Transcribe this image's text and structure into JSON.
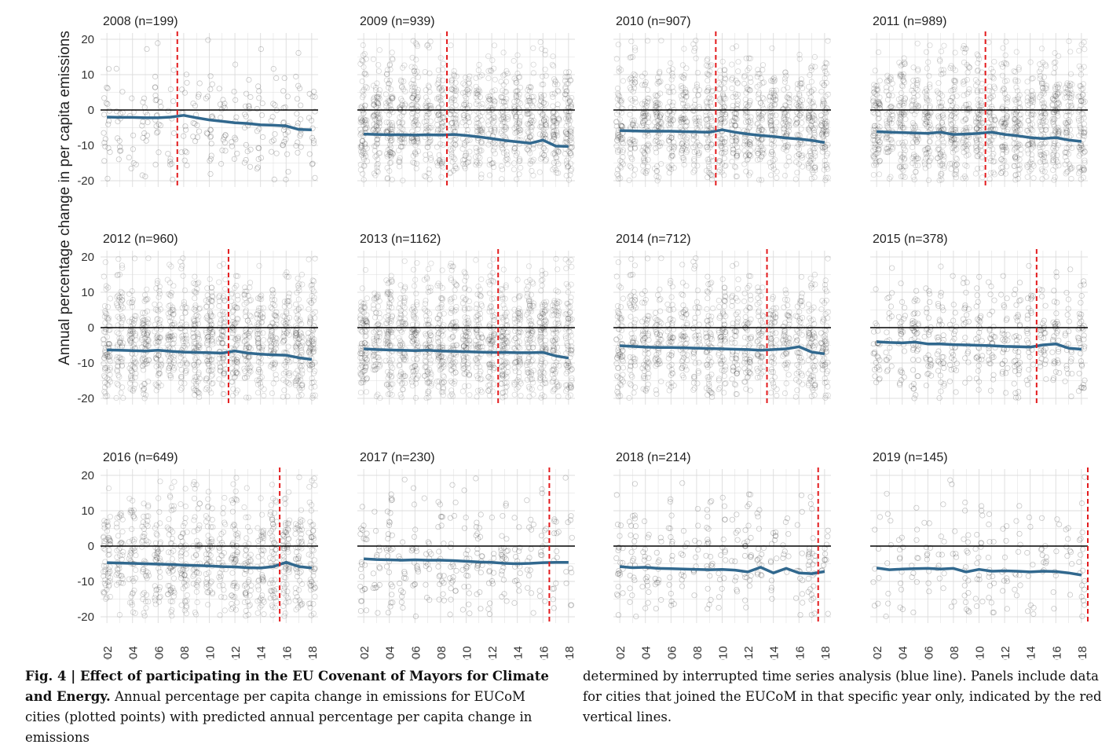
{
  "figure": {
    "ylabel": "Annual percentage change in per capita emissions",
    "caption_label": "Fig. 4 | ",
    "caption_title": "Effect of participating in the EU Covenant of Mayors for Climate and Energy.",
    "caption_text_left": " Annual percentage per capita change in emissions for EUCoM cities (plotted points) with predicted annual percentage per capita change in emissions",
    "caption_text_right": "determined by interrupted time series analysis (blue line). Panels include data for cities that joined the EUCoM in that specific year only, indicated by the red vertical lines."
  },
  "chart_data": [
    {
      "type": "scatter",
      "title": "2008 (n=199)",
      "join_year": 2008,
      "n": 199,
      "ylim": [
        -20,
        20
      ],
      "yticks": [
        20,
        10,
        0,
        -10,
        -20
      ],
      "xlim": [
        2001.5,
        2018.5
      ],
      "xticks": [
        2002,
        2004,
        2006,
        2008,
        2010,
        2012,
        2014,
        2016,
        2018
      ],
      "trend": {
        "x": [
          2002,
          2003,
          2004,
          2005,
          2006,
          2007,
          2008,
          2009,
          2010,
          2011,
          2012,
          2013,
          2014,
          2015,
          2016,
          2017,
          2018
        ],
        "y": [
          -2.0,
          -2.1,
          -2.1,
          -2.2,
          -2.2,
          -2.0,
          -1.5,
          -2.2,
          -2.8,
          -3.2,
          -3.6,
          -3.8,
          -4.2,
          -4.3,
          -4.5,
          -5.5,
          -5.6
        ]
      }
    },
    {
      "type": "scatter",
      "title": "2009 (n=939)",
      "join_year": 2009,
      "n": 939,
      "ylim": [
        -20,
        20
      ],
      "yticks": [
        20,
        10,
        0,
        -10,
        -20
      ],
      "xlim": [
        2001.5,
        2018.5
      ],
      "xticks": [
        2002,
        2004,
        2006,
        2008,
        2010,
        2012,
        2014,
        2016,
        2018
      ],
      "trend": {
        "x": [
          2002,
          2003,
          2004,
          2005,
          2006,
          2007,
          2008,
          2009,
          2010,
          2011,
          2012,
          2013,
          2014,
          2015,
          2016,
          2017,
          2018
        ],
        "y": [
          -6.8,
          -6.9,
          -7.0,
          -7.0,
          -7.1,
          -7.0,
          -7.1,
          -6.9,
          -7.2,
          -7.6,
          -8.1,
          -8.6,
          -9.0,
          -9.4,
          -8.5,
          -10.2,
          -10.3
        ]
      }
    },
    {
      "type": "scatter",
      "title": "2010 (n=907)",
      "join_year": 2010,
      "n": 907,
      "ylim": [
        -20,
        20
      ],
      "yticks": [
        20,
        10,
        0,
        -10,
        -20
      ],
      "xlim": [
        2001.5,
        2018.5
      ],
      "xticks": [
        2002,
        2004,
        2006,
        2008,
        2010,
        2012,
        2014,
        2016,
        2018
      ],
      "trend": {
        "x": [
          2002,
          2003,
          2004,
          2005,
          2006,
          2007,
          2008,
          2009,
          2010,
          2011,
          2012,
          2013,
          2014,
          2015,
          2016,
          2017,
          2018
        ],
        "y": [
          -5.8,
          -5.9,
          -6.0,
          -6.0,
          -6.0,
          -6.1,
          -6.2,
          -6.3,
          -5.6,
          -6.3,
          -6.8,
          -7.2,
          -7.5,
          -7.9,
          -8.2,
          -8.6,
          -9.2
        ]
      }
    },
    {
      "type": "scatter",
      "title": "2011 (n=989)",
      "join_year": 2011,
      "n": 989,
      "ylim": [
        -20,
        20
      ],
      "yticks": [
        20,
        10,
        0,
        -10,
        -20
      ],
      "xlim": [
        2001.5,
        2018.5
      ],
      "xticks": [
        2002,
        2004,
        2006,
        2008,
        2010,
        2012,
        2014,
        2016,
        2018
      ],
      "trend": {
        "x": [
          2002,
          2003,
          2004,
          2005,
          2006,
          2007,
          2008,
          2009,
          2010,
          2011,
          2012,
          2013,
          2014,
          2015,
          2016,
          2017,
          2018
        ],
        "y": [
          -6.1,
          -6.3,
          -6.4,
          -6.5,
          -6.6,
          -6.3,
          -6.9,
          -6.8,
          -6.6,
          -6.3,
          -6.9,
          -7.3,
          -7.8,
          -8.1,
          -7.8,
          -8.5,
          -8.9
        ]
      }
    },
    {
      "type": "scatter",
      "title": "2012 (n=960)",
      "join_year": 2012,
      "n": 960,
      "ylim": [
        -20,
        20
      ],
      "yticks": [
        20,
        10,
        0,
        -10,
        -20
      ],
      "xlim": [
        2001.5,
        2018.5
      ],
      "xticks": [
        2002,
        2004,
        2006,
        2008,
        2010,
        2012,
        2014,
        2016,
        2018
      ],
      "trend": {
        "x": [
          2002,
          2003,
          2004,
          2005,
          2006,
          2007,
          2008,
          2009,
          2010,
          2011,
          2012,
          2013,
          2014,
          2015,
          2016,
          2017,
          2018
        ],
        "y": [
          -6.3,
          -6.4,
          -6.5,
          -6.6,
          -6.4,
          -6.7,
          -6.9,
          -7.0,
          -7.1,
          -7.2,
          -6.6,
          -7.2,
          -7.5,
          -7.7,
          -7.8,
          -8.5,
          -9.0
        ]
      }
    },
    {
      "type": "scatter",
      "title": "2013 (n=1162)",
      "join_year": 2013,
      "n": 1162,
      "ylim": [
        -20,
        20
      ],
      "yticks": [
        20,
        10,
        0,
        -10,
        -20
      ],
      "xlim": [
        2001.5,
        2018.5
      ],
      "xticks": [
        2002,
        2004,
        2006,
        2008,
        2010,
        2012,
        2014,
        2016,
        2018
      ],
      "trend": {
        "x": [
          2002,
          2003,
          2004,
          2005,
          2006,
          2007,
          2008,
          2009,
          2010,
          2011,
          2012,
          2013,
          2014,
          2015,
          2016,
          2017,
          2018
        ],
        "y": [
          -6.0,
          -6.2,
          -6.3,
          -6.4,
          -6.5,
          -6.4,
          -6.6,
          -6.7,
          -6.8,
          -6.9,
          -7.0,
          -7.0,
          -7.1,
          -7.1,
          -7.0,
          -8.0,
          -8.6
        ]
      }
    },
    {
      "type": "scatter",
      "title": "2014 (n=712)",
      "join_year": 2014,
      "n": 712,
      "ylim": [
        -20,
        20
      ],
      "yticks": [
        20,
        10,
        0,
        -10,
        -20
      ],
      "xlim": [
        2001.5,
        2018.5
      ],
      "xticks": [
        2002,
        2004,
        2006,
        2008,
        2010,
        2012,
        2014,
        2016,
        2018
      ],
      "trend": {
        "x": [
          2002,
          2003,
          2004,
          2005,
          2006,
          2007,
          2008,
          2009,
          2010,
          2011,
          2012,
          2013,
          2014,
          2015,
          2016,
          2017,
          2018
        ],
        "y": [
          -5.1,
          -5.3,
          -5.5,
          -5.6,
          -5.6,
          -5.7,
          -5.8,
          -5.9,
          -6.0,
          -6.1,
          -6.2,
          -6.4,
          -6.2,
          -6.0,
          -5.4,
          -6.9,
          -7.4
        ]
      }
    },
    {
      "type": "scatter",
      "title": "2015 (n=378)",
      "join_year": 2015,
      "n": 378,
      "ylim": [
        -20,
        20
      ],
      "yticks": [
        20,
        10,
        0,
        -10,
        -20
      ],
      "xlim": [
        2001.5,
        2018.5
      ],
      "xticks": [
        2002,
        2004,
        2006,
        2008,
        2010,
        2012,
        2014,
        2016,
        2018
      ],
      "trend": {
        "x": [
          2002,
          2003,
          2004,
          2005,
          2006,
          2007,
          2008,
          2009,
          2010,
          2011,
          2012,
          2013,
          2014,
          2015,
          2016,
          2017,
          2018
        ],
        "y": [
          -4.0,
          -4.2,
          -4.3,
          -4.1,
          -4.6,
          -4.6,
          -4.8,
          -4.9,
          -5.0,
          -5.1,
          -5.3,
          -5.4,
          -5.5,
          -4.9,
          -4.6,
          -5.8,
          -6.1
        ]
      }
    },
    {
      "type": "scatter",
      "title": "2016 (n=649)",
      "join_year": 2016,
      "n": 649,
      "ylim": [
        -20,
        20
      ],
      "yticks": [
        20,
        10,
        0,
        -10,
        -20
      ],
      "xlim": [
        2001.5,
        2018.5
      ],
      "xticks": [
        2002,
        2004,
        2006,
        2008,
        2010,
        2012,
        2014,
        2016,
        2018
      ],
      "trend": {
        "x": [
          2002,
          2003,
          2004,
          2005,
          2006,
          2007,
          2008,
          2009,
          2010,
          2011,
          2012,
          2013,
          2014,
          2015,
          2016,
          2017,
          2018
        ],
        "y": [
          -4.7,
          -4.8,
          -4.9,
          -5.0,
          -5.1,
          -5.2,
          -5.4,
          -5.5,
          -5.6,
          -5.8,
          -5.9,
          -6.1,
          -6.2,
          -5.8,
          -4.6,
          -5.8,
          -6.2
        ]
      }
    },
    {
      "type": "scatter",
      "title": "2017 (n=230)",
      "join_year": 2017,
      "n": 230,
      "ylim": [
        -20,
        20
      ],
      "yticks": [
        20,
        10,
        0,
        -10,
        -20
      ],
      "xlim": [
        2001.5,
        2018.5
      ],
      "xticks": [
        2002,
        2004,
        2006,
        2008,
        2010,
        2012,
        2014,
        2016,
        2018
      ],
      "trend": {
        "x": [
          2002,
          2003,
          2004,
          2005,
          2006,
          2007,
          2008,
          2009,
          2010,
          2011,
          2012,
          2013,
          2014,
          2015,
          2016,
          2017,
          2018
        ],
        "y": [
          -3.6,
          -3.8,
          -3.9,
          -4.0,
          -3.9,
          -4.0,
          -4.0,
          -4.1,
          -4.3,
          -4.5,
          -4.6,
          -4.9,
          -5.0,
          -4.9,
          -4.7,
          -4.6,
          -4.6
        ]
      }
    },
    {
      "type": "scatter",
      "title": "2018 (n=214)",
      "join_year": 2018,
      "n": 214,
      "ylim": [
        -20,
        20
      ],
      "yticks": [
        20,
        10,
        0,
        -10,
        -20
      ],
      "xlim": [
        2001.5,
        2018.5
      ],
      "xticks": [
        2002,
        2004,
        2006,
        2008,
        2010,
        2012,
        2014,
        2016,
        2018
      ],
      "trend": {
        "x": [
          2002,
          2003,
          2004,
          2005,
          2006,
          2007,
          2008,
          2009,
          2010,
          2011,
          2012,
          2013,
          2014,
          2015,
          2016,
          2017,
          2018
        ],
        "y": [
          -5.8,
          -6.1,
          -6.0,
          -6.3,
          -6.4,
          -6.5,
          -6.6,
          -6.7,
          -6.6,
          -6.8,
          -7.3,
          -6.0,
          -7.6,
          -6.3,
          -7.6,
          -7.8,
          -7.2
        ]
      }
    },
    {
      "type": "scatter",
      "title": "2019 (n=145)",
      "join_year": 2019,
      "n": 145,
      "ylim": [
        -20,
        20
      ],
      "yticks": [
        20,
        10,
        0,
        -10,
        -20
      ],
      "xlim": [
        2001.5,
        2018.5
      ],
      "xticks": [
        2002,
        2004,
        2006,
        2008,
        2010,
        2012,
        2014,
        2016,
        2018
      ],
      "trend": {
        "x": [
          2002,
          2003,
          2004,
          2005,
          2006,
          2007,
          2008,
          2009,
          2010,
          2011,
          2012,
          2013,
          2014,
          2015,
          2016,
          2017,
          2018
        ],
        "y": [
          -6.2,
          -6.7,
          -6.5,
          -6.4,
          -6.3,
          -6.5,
          -6.3,
          -7.3,
          -6.6,
          -7.1,
          -7.0,
          -7.1,
          -7.3,
          -7.1,
          -7.2,
          -7.6,
          -8.2
        ]
      }
    }
  ],
  "colors": {
    "trend": "#31688e",
    "join_line": "#e31a1c",
    "zero_line": "#000000",
    "grid": "#dcdcdc",
    "points": "#000000"
  }
}
